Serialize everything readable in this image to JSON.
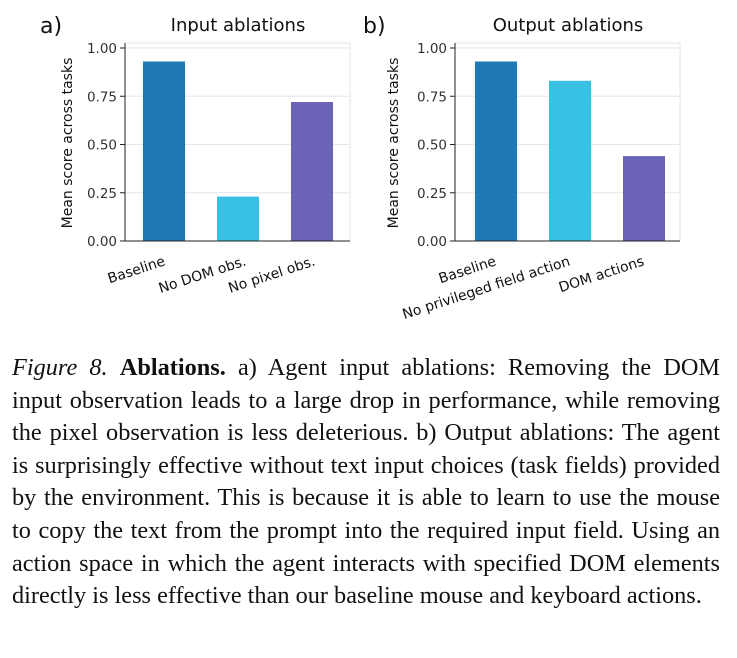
{
  "chart_data": [
    {
      "type": "bar",
      "panel": "a)",
      "title": "Input ablations",
      "ylabel": "Mean score across tasks",
      "ylim": [
        0,
        1.0
      ],
      "yticks": [
        "0.00",
        "0.25",
        "0.50",
        "0.75",
        "1.00"
      ],
      "categories": [
        "Baseline",
        "No DOM obs.",
        "No pixel obs."
      ],
      "values": [
        0.93,
        0.23,
        0.72
      ],
      "colors": [
        "#1f77b4",
        "#38c1e3",
        "#6a63b8"
      ],
      "grid": true
    },
    {
      "type": "bar",
      "panel": "b)",
      "title": "Output ablations",
      "ylabel": "Mean score across tasks",
      "ylim": [
        0,
        1.0
      ],
      "yticks": [
        "0.00",
        "0.25",
        "0.50",
        "0.75",
        "1.00"
      ],
      "categories": [
        "Baseline",
        "No privileged field action",
        "DOM actions"
      ],
      "values": [
        0.93,
        0.83,
        0.44
      ],
      "colors": [
        "#1f77b4",
        "#38c1e3",
        "#6a63b8"
      ],
      "grid": true
    }
  ],
  "caption": {
    "label": "Figure 8.",
    "heading": "Ablations.",
    "text": "a) Agent input ablations: Removing the DOM input observation leads to a large drop in performance, while removing the pixel observation is less deleterious. b) Output ablations: The agent is surprisingly effective without text input choices (task fields) provided by the environment. This is because it is able to learn to use the mouse to copy the text from the prompt into the required input field. Using an action space in which the agent interacts with specified DOM elements directly is less effective than our baseline mouse and keyboard actions."
  }
}
